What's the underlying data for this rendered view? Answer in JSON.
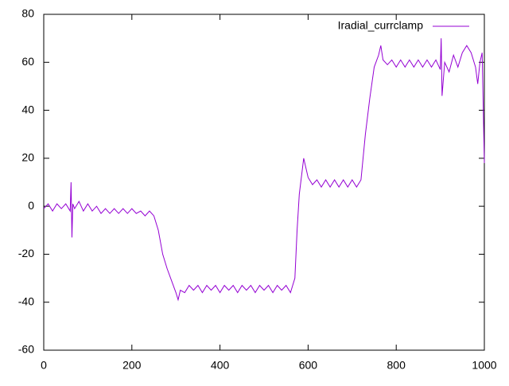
{
  "chart_data": {
    "type": "line",
    "xlim": [
      0,
      1000
    ],
    "xticks": [
      0,
      200,
      400,
      600,
      800,
      1000
    ],
    "ylim": [
      -60,
      80
    ],
    "yticks": [
      -60,
      -40,
      -20,
      0,
      20,
      40,
      60,
      80
    ],
    "legend": "top-right",
    "series": [
      {
        "name": "Iradial_currclamp",
        "color": "#9400d3",
        "x": [
          0,
          10,
          20,
          30,
          40,
          50,
          60,
          62,
          64,
          66,
          70,
          80,
          90,
          100,
          110,
          120,
          130,
          140,
          150,
          160,
          170,
          180,
          190,
          200,
          210,
          220,
          230,
          240,
          250,
          260,
          270,
          280,
          290,
          300,
          305,
          310,
          320,
          330,
          340,
          350,
          360,
          370,
          380,
          390,
          400,
          410,
          420,
          430,
          440,
          450,
          460,
          470,
          480,
          490,
          500,
          510,
          520,
          530,
          540,
          550,
          560,
          570,
          575,
          580,
          590,
          600,
          610,
          620,
          630,
          640,
          650,
          660,
          670,
          680,
          690,
          700,
          710,
          720,
          730,
          740,
          750,
          760,
          765,
          770,
          780,
          790,
          800,
          810,
          820,
          830,
          840,
          850,
          860,
          870,
          880,
          890,
          900,
          902,
          904,
          910,
          920,
          930,
          940,
          950,
          960,
          970,
          980,
          985,
          990,
          995,
          1000
        ],
        "values": [
          -1,
          1,
          -2,
          1,
          -1,
          1,
          -2,
          10,
          -13,
          1,
          -1,
          2,
          -2,
          1,
          -2,
          0,
          -3,
          -1,
          -3,
          -1,
          -3,
          -1,
          -3,
          -1,
          -3,
          -2,
          -4,
          -2,
          -4,
          -10,
          -20,
          -26,
          -31,
          -36,
          -39,
          -35,
          -36,
          -33,
          -35,
          -33,
          -36,
          -33,
          -35,
          -33,
          -36,
          -33,
          -35,
          -33,
          -36,
          -33,
          -35,
          -33,
          -36,
          -33,
          -35,
          -33,
          -36,
          -33,
          -35,
          -33,
          -36,
          -30,
          -10,
          5,
          20,
          12,
          9,
          11,
          8,
          11,
          8,
          11,
          8,
          11,
          8,
          11,
          8,
          11,
          30,
          45,
          58,
          63,
          67,
          61,
          59,
          61,
          58,
          61,
          58,
          61,
          58,
          61,
          58,
          61,
          58,
          61,
          57,
          70,
          46,
          60,
          56,
          63,
          58,
          64,
          67,
          64,
          58,
          51,
          60,
          64,
          18
        ]
      }
    ]
  }
}
